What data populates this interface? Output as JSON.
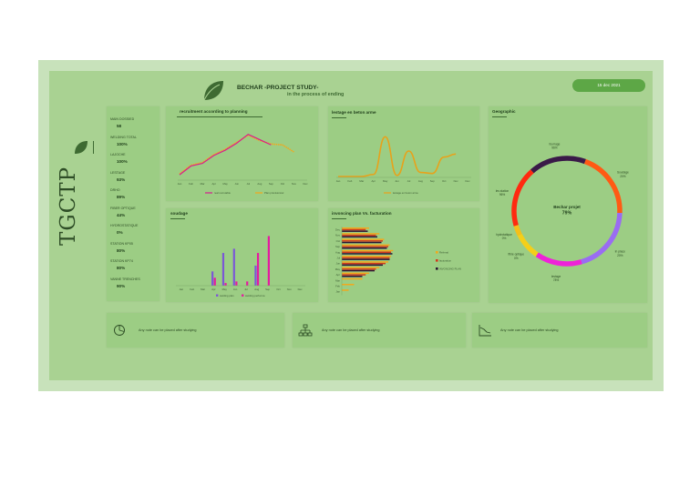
{
  "header": {
    "title": "BECHAR -PROJECT STUDY-",
    "subtitle": "in the process of ending",
    "date": "15 dec 2021",
    "brand": "TGCTP"
  },
  "kpis": [
    {
      "label": "MAIN DOSSIED",
      "value": "58"
    },
    {
      "label": "WELDING TOTAL",
      "value": "100%"
    },
    {
      "label": "LAJOCHE",
      "value": "100%"
    },
    {
      "label": "LESTAGE",
      "value": "93%"
    },
    {
      "label": "DRHO",
      "value": "89%"
    },
    {
      "label": "FIBER OPTIQUE",
      "value": "44%"
    },
    {
      "label": "HYDROSTATIQUE",
      "value": "0%"
    },
    {
      "label": "STATION KP05",
      "value": "80%"
    },
    {
      "label": "STATION KP74",
      "value": "80%"
    },
    {
      "label": "VANNE TRENCHES",
      "value": "90%"
    }
  ],
  "panels": {
    "recruitment_title": "recruitment according to planning",
    "lestage_title": "lestage en beton arme",
    "soudage_title": "soudage",
    "invoicing_title": "invoncing plan Vs. facturation",
    "geo_title": "Geographic"
  },
  "notes": {
    "n1": "Any note can be placed after studying",
    "n2": "Any note can be placed after studying",
    "n3": "Any note can be placed after studying"
  },
  "colors": {
    "accent_dark": "#3e6a32",
    "date_pill": "#5da746",
    "recruit_real": "#d61f8f",
    "recruit_plan": "#f2a81b",
    "lestage": "#e8a21a",
    "sold_purple": "#7b57d6",
    "sold_pink": "#e51aa0",
    "inv_plan": "#f2a81b",
    "inv_fact": "#d1391c",
    "inv_dark": "#2a1533"
  },
  "chart_data": [
    {
      "type": "line",
      "title": "recruitment according to planning",
      "categories": [
        "Jan",
        "Feb",
        "Mar",
        "Apr",
        "May",
        "Jun",
        "Jul",
        "Aug",
        "Sep",
        "Oct",
        "Nov",
        "Dec"
      ],
      "series": [
        {
          "name": "real recrutable",
          "values": [
            8,
            28,
            34,
            52,
            64,
            80,
            100,
            88,
            76,
            null,
            null,
            null
          ]
        },
        {
          "name": "Plan prévisionnel",
          "values": [
            10,
            30,
            36,
            54,
            66,
            82,
            98,
            86,
            78,
            76,
            60,
            null
          ]
        }
      ],
      "ylim": [
        0,
        120
      ]
    },
    {
      "type": "line",
      "title": "lestage en beton arme",
      "categories": [
        "Jan",
        "Feb",
        "Mar",
        "Apr",
        "May",
        "Jun",
        "Jul",
        "Aug",
        "Sep",
        "Oct",
        "Nov",
        "Dec"
      ],
      "series": [
        {
          "name": "lestage en beton arme",
          "values": [
            0,
            0,
            0,
            4,
            78,
            2,
            50,
            8,
            6,
            38,
            44,
            null
          ]
        }
      ],
      "ylim": [
        0,
        100
      ]
    },
    {
      "type": "bar",
      "title": "soudage",
      "categories": [
        "Jan",
        "Feb",
        "Mar",
        "Apr",
        "May",
        "Jun",
        "Jul",
        "Aug",
        "Sep",
        "Oct",
        "Nov",
        "Dec"
      ],
      "series": [
        {
          "name": "welding plan",
          "values": [
            0,
            0,
            0,
            27,
            62,
            70,
            0,
            38,
            0,
            0,
            0,
            0
          ]
        },
        {
          "name": "welding performa",
          "values": [
            0,
            0,
            0,
            15,
            5,
            8,
            8,
            62,
            94,
            0,
            0,
            0
          ]
        }
      ],
      "ylim": [
        0,
        100
      ]
    },
    {
      "type": "bar",
      "orientation": "horizontal",
      "title": "invoncing plan Vs. facturation",
      "categories": [
        "Dec",
        "Nov",
        "Oct",
        "Sep",
        "Aug",
        "Jul",
        "Jun",
        "May",
        "Apr",
        "Mar",
        "Feb",
        "Jan"
      ],
      "series": [
        {
          "name": "Referral",
          "values": [
            40,
            55,
            62,
            70,
            75,
            72,
            68,
            55,
            40,
            30,
            18,
            10
          ]
        },
        {
          "name": "facturation",
          "values": [
            35,
            50,
            60,
            68,
            72,
            70,
            64,
            50,
            35,
            0,
            0,
            0
          ]
        },
        {
          "name": "INVONCING PLAN",
          "values": [
            38,
            52,
            58,
            66,
            74,
            70,
            60,
            48,
            30,
            0,
            0,
            0
          ]
        }
      ]
    },
    {
      "type": "pie",
      "title": "Geographic",
      "center_label": "Bechar projet",
      "center_value": "79%",
      "slices": [
        {
          "name": "Soudage",
          "label": "20%",
          "value": 20,
          "color": "#ff5a14"
        },
        {
          "name": "In place",
          "label": "20%",
          "value": 20,
          "color": "#9a6cf2"
        },
        {
          "name": "lestage",
          "label": "78%",
          "value": 14,
          "color": "#ee22d8"
        },
        {
          "name": "fibre optique",
          "label": "0%",
          "value": 8,
          "color": "#f4cf1a"
        },
        {
          "name": "hydrotatique",
          "label": "0%",
          "value": 3,
          "color": "#f4bf1a"
        },
        {
          "name": "les station",
          "label": "96%",
          "value": 18,
          "color": "#ff2a10"
        },
        {
          "name": "fourrage",
          "label": "96%",
          "value": 17,
          "color": "#3a1a48"
        }
      ]
    }
  ]
}
